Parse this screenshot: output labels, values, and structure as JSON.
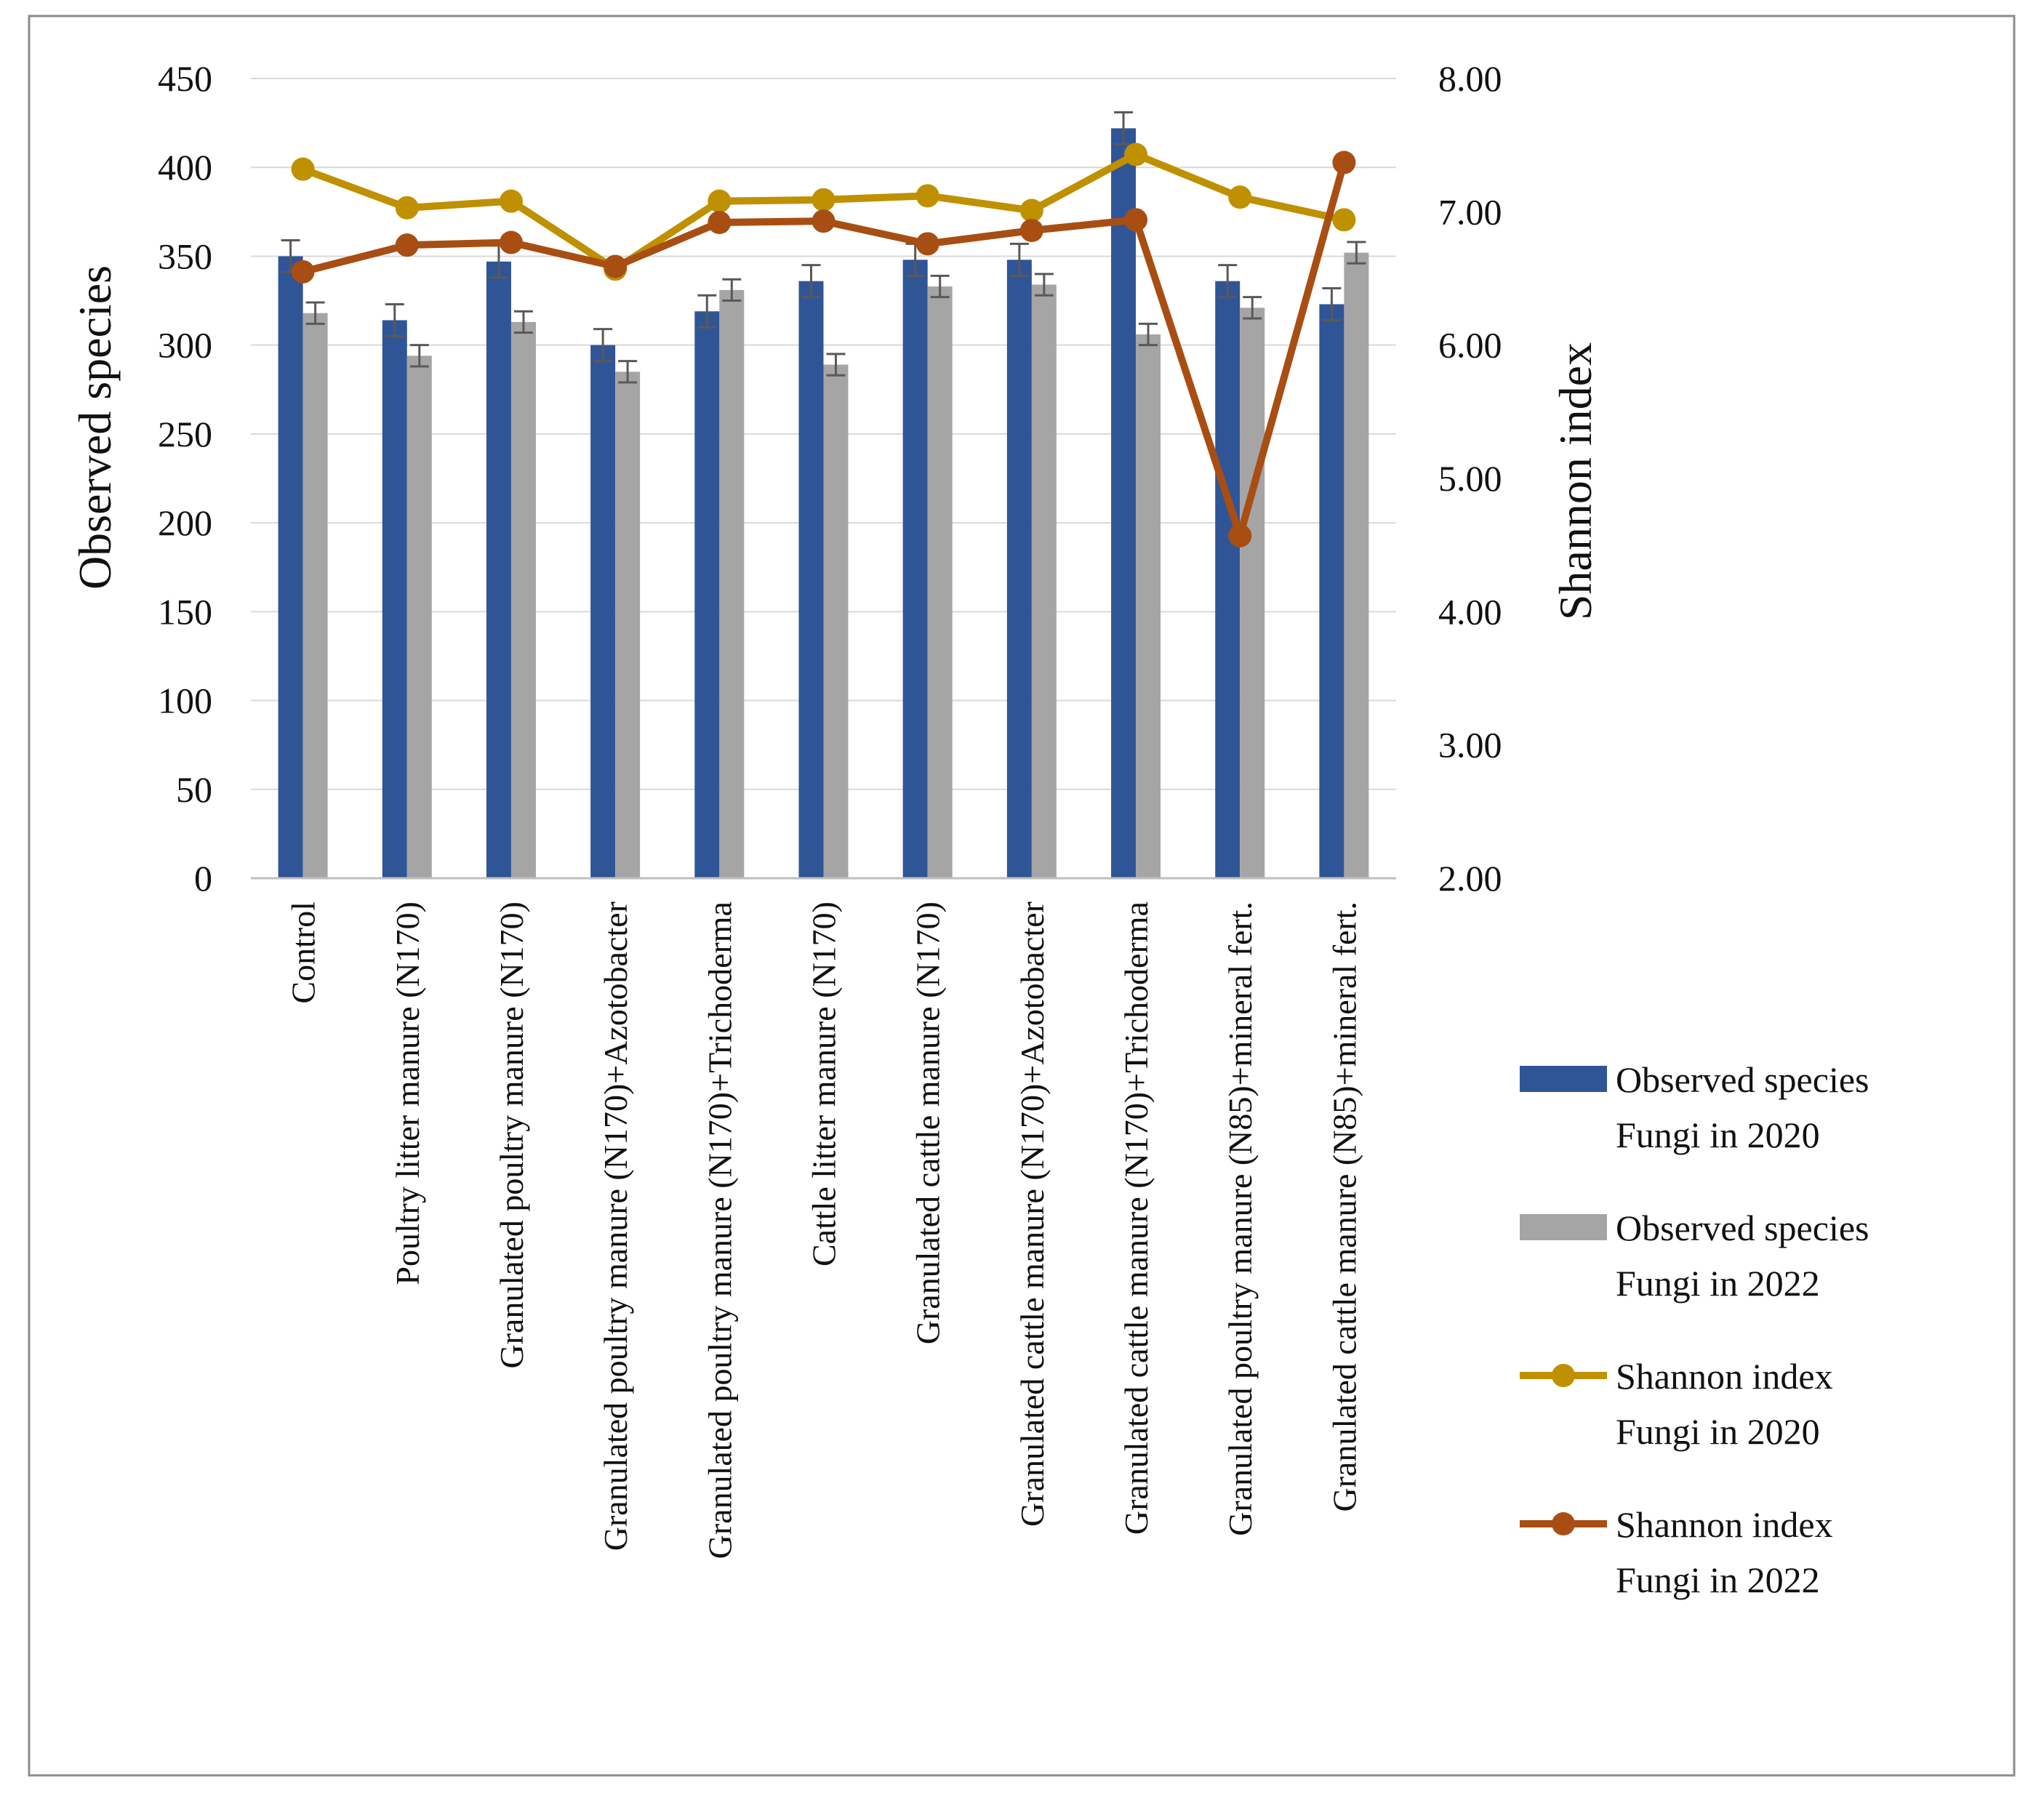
{
  "chart_data": {
    "type": "bar",
    "title": "",
    "categories": [
      "Control",
      "Poultry litter manure (N170)",
      "Granulated poultry manure (N170)",
      "Granulated poultry manure (N170)+Azotobacter",
      "Granulated poultry manure (N170)+Trichoderma",
      "Cattle litter manure (N170)",
      "Granulated cattle manure (N170)",
      "Granulated cattle manure (N170)+Azotobacter",
      "Granulated cattle manure (N170)+Trichoderma",
      "Granulated poultry manure (N85)+mineral fert.",
      "Granulated cattle manure (N85)+mineral fert."
    ],
    "ylabel": "Observed species",
    "y2label": "Shannon index",
    "ylim": [
      0,
      450
    ],
    "y2lim": [
      2.0,
      8.0
    ],
    "yticks": [
      "0",
      "50",
      "100",
      "150",
      "200",
      "250",
      "300",
      "350",
      "400",
      "450"
    ],
    "y2ticks": [
      "2.00",
      "3.00",
      "4.00",
      "5.00",
      "6.00",
      "7.00",
      "8.00"
    ],
    "grid": true,
    "legend_position": "right",
    "series": [
      {
        "name": "Observed species Fungi in 2020",
        "legend_lines": [
          "Observed species",
          "Fungi in 2020"
        ],
        "kind": "bar",
        "axis": "left",
        "color": "#2f5597",
        "values": [
          350,
          314,
          347,
          300,
          319,
          336,
          348,
          348,
          422,
          336,
          323
        ],
        "errors": [
          9,
          9,
          9,
          9,
          9,
          9,
          9,
          9,
          9,
          9,
          9
        ]
      },
      {
        "name": "Observed species Fungi in 2022",
        "legend_lines": [
          "Observed species",
          "Fungi in 2022"
        ],
        "kind": "bar",
        "axis": "left",
        "color": "#a5a5a5",
        "values": [
          318,
          294,
          313,
          285,
          331,
          289,
          333,
          334,
          306,
          321,
          352
        ],
        "errors": [
          6,
          6,
          6,
          6,
          6,
          6,
          6,
          6,
          6,
          6,
          6
        ]
      },
      {
        "name": "Shannon index Fungi in 2020",
        "legend_lines": [
          "Shannon index",
          "Fungi in 2020"
        ],
        "kind": "line",
        "axis": "right",
        "color": "#bf9000",
        "values": [
          7.32,
          7.03,
          7.08,
          6.57,
          7.08,
          7.09,
          7.12,
          7.01,
          7.43,
          7.11,
          6.94
        ]
      },
      {
        "name": "Shannon index Fungi in 2022",
        "legend_lines": [
          "Shannon index",
          "Fungi in 2022"
        ],
        "kind": "line",
        "axis": "right",
        "color": "#a84e13",
        "values": [
          6.55,
          6.75,
          6.77,
          6.59,
          6.92,
          6.93,
          6.76,
          6.86,
          6.94,
          4.57,
          7.37
        ]
      }
    ]
  }
}
